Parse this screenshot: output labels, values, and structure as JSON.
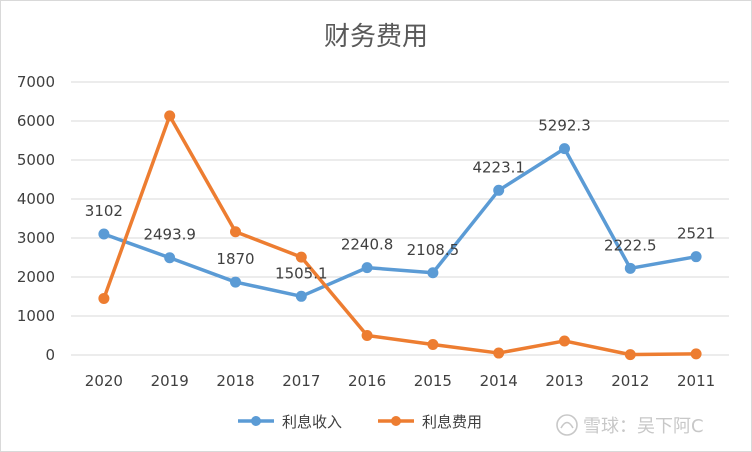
{
  "chart_data": {
    "type": "line",
    "title": "财务费用",
    "categories": [
      "2020",
      "2019",
      "2018",
      "2017",
      "2016",
      "2015",
      "2014",
      "2013",
      "2012",
      "2011"
    ],
    "yticks": [
      "0",
      "1000",
      "2000",
      "3000",
      "4000",
      "5000",
      "6000",
      "7000"
    ],
    "ylim": [
      0,
      7000
    ],
    "grid": true,
    "legend_position": "bottom",
    "series": [
      {
        "name": "利息收入",
        "color": "#5b9bd5",
        "values": [
          3102,
          2493.9,
          1870,
          1505.1,
          2240.8,
          2108.5,
          4223.1,
          5292.3,
          2222.5,
          2521
        ],
        "labels": [
          "3102",
          "2493.9",
          "1870",
          "1505.1",
          "2240.8",
          "2108.5",
          "4223.1",
          "5292.3",
          "2222.5",
          "2521"
        ]
      },
      {
        "name": "利息费用",
        "color": "#ed7d31",
        "values": [
          1450,
          6130,
          3160,
          2510,
          500,
          270,
          50,
          360,
          10,
          30
        ]
      }
    ]
  },
  "watermark": {
    "text": "雪球：吴下阿C",
    "icon": "snowball-logo-icon"
  }
}
